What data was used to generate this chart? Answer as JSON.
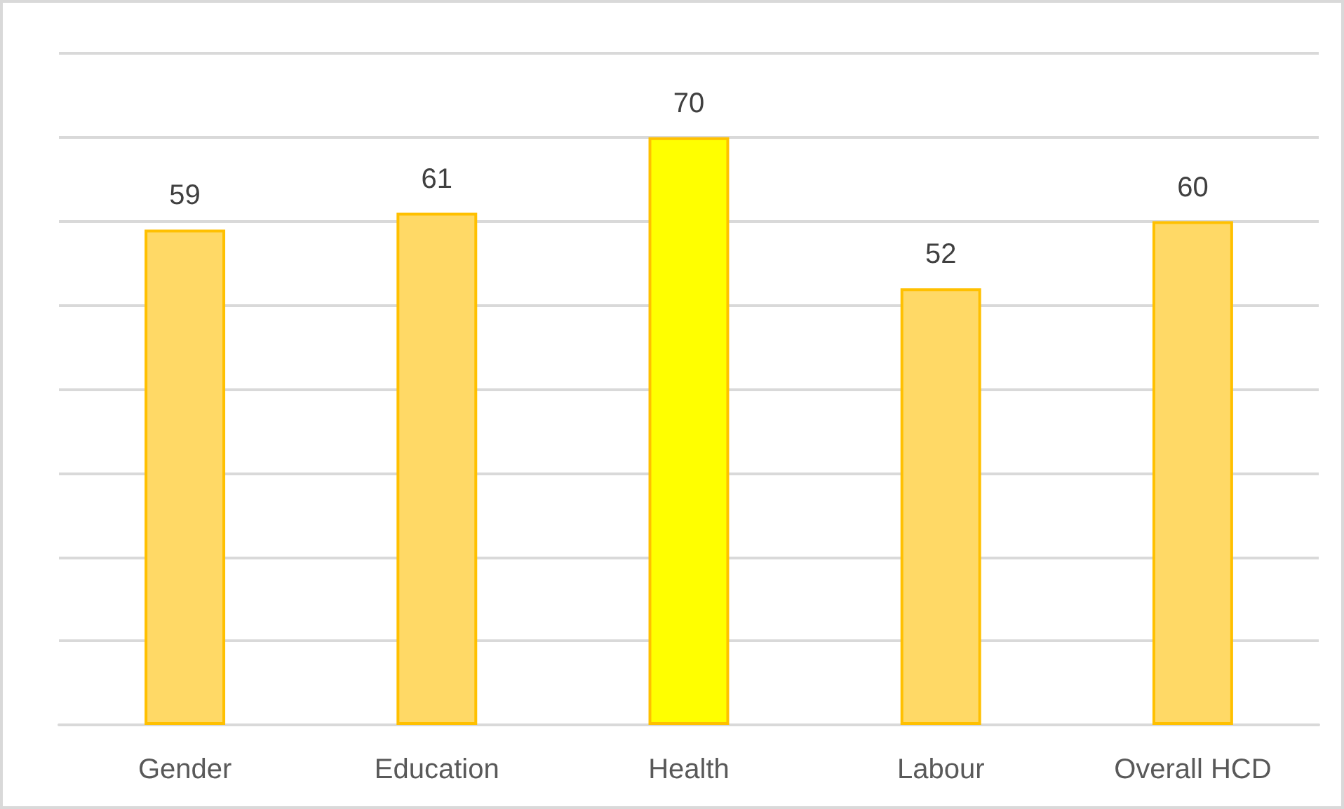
{
  "chart_data": {
    "type": "bar",
    "categories": [
      "Gender",
      "Education",
      "Health",
      "Labour",
      "Overall HCD"
    ],
    "values": [
      59,
      61,
      70,
      52,
      60
    ],
    "colors": [
      "#ffd966",
      "#ffd966",
      "#ffff00",
      "#ffd966",
      "#ffd966"
    ],
    "ylim": [
      0,
      80
    ],
    "yticks": [
      {
        "value": 0,
        "label": null
      },
      {
        "value": 10,
        "label": null
      },
      {
        "value": 20,
        "label": null
      },
      {
        "value": 30,
        "label": null
      },
      {
        "value": 40,
        "label": null
      },
      {
        "value": 50,
        "label": null
      },
      {
        "value": 60,
        "label": null
      },
      {
        "value": 70,
        "label": null
      },
      {
        "value": 80,
        "label": null
      }
    ],
    "tick_labels": "x",
    "grid": "y",
    "data_labels": true
  }
}
